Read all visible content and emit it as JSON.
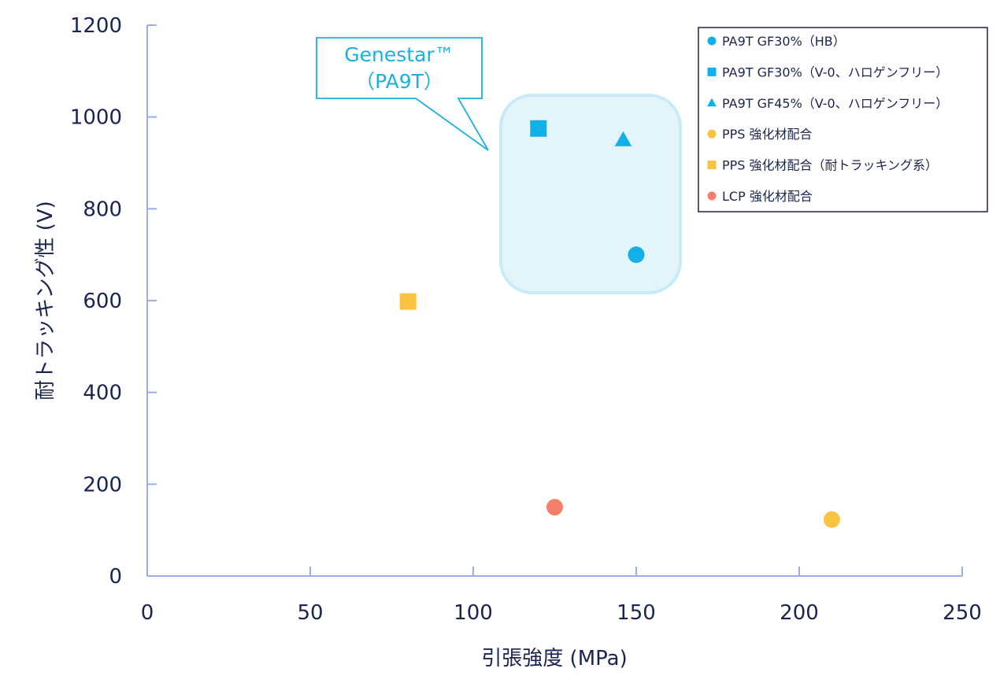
{
  "chart_data": {
    "type": "scatter",
    "xlabel": "引張強度 (MPa)",
    "ylabel": "耐トラッキング性 (V)",
    "xlim": [
      0,
      250
    ],
    "ylim": [
      0,
      1200
    ],
    "x_ticks": [
      "0",
      "50",
      "100",
      "150",
      "200",
      "250"
    ],
    "y_ticks": [
      "0",
      "200",
      "400",
      "600",
      "800",
      "1000",
      "1200"
    ],
    "grid": false,
    "legend_position": "top-right",
    "series": [
      {
        "name": "PA9T GF30%（HB）",
        "marker": "circle",
        "color": "#12b0e8",
        "points": [
          {
            "x": 150,
            "y": 700
          }
        ]
      },
      {
        "name": "PA9T GF30%（V-0、ハロゲンフリー）",
        "marker": "square",
        "color": "#12b0e8",
        "points": [
          {
            "x": 120,
            "y": 975
          }
        ]
      },
      {
        "name": "PA9T GF45%（V-0、ハロゲンフリー）",
        "marker": "triangle",
        "color": "#12b0e8",
        "points": [
          {
            "x": 146,
            "y": 950
          }
        ]
      },
      {
        "name": "PPS 強化材配合",
        "marker": "circle",
        "color": "#fbc342",
        "points": [
          {
            "x": 210,
            "y": 123
          }
        ]
      },
      {
        "name": "PPS 強化材配合（耐トラッキング系）",
        "marker": "square",
        "color": "#fbc342",
        "points": [
          {
            "x": 80,
            "y": 598
          }
        ]
      },
      {
        "name": "LCP 強化材配合",
        "marker": "circle",
        "color": "#f5806a",
        "points": [
          {
            "x": 125,
            "y": 150
          }
        ]
      }
    ],
    "annotations": [
      {
        "text_line1": "Genestar™",
        "text_line2": "（PA9T）",
        "highlights": [
          "PA9T GF30%（HB）",
          "PA9T GF30%（V-0、ハロゲンフリー）",
          "PA9T GF45%（V-0、ハロゲンフリー）"
        ]
      }
    ]
  },
  "colors": {
    "axis": "#9aaee8",
    "text": "#1a2450",
    "accent": "#1ab0e2",
    "highlight_fill": "#e3f4fb",
    "highlight_stroke": "#c7ecf8",
    "legend_border": "#1a2450"
  }
}
